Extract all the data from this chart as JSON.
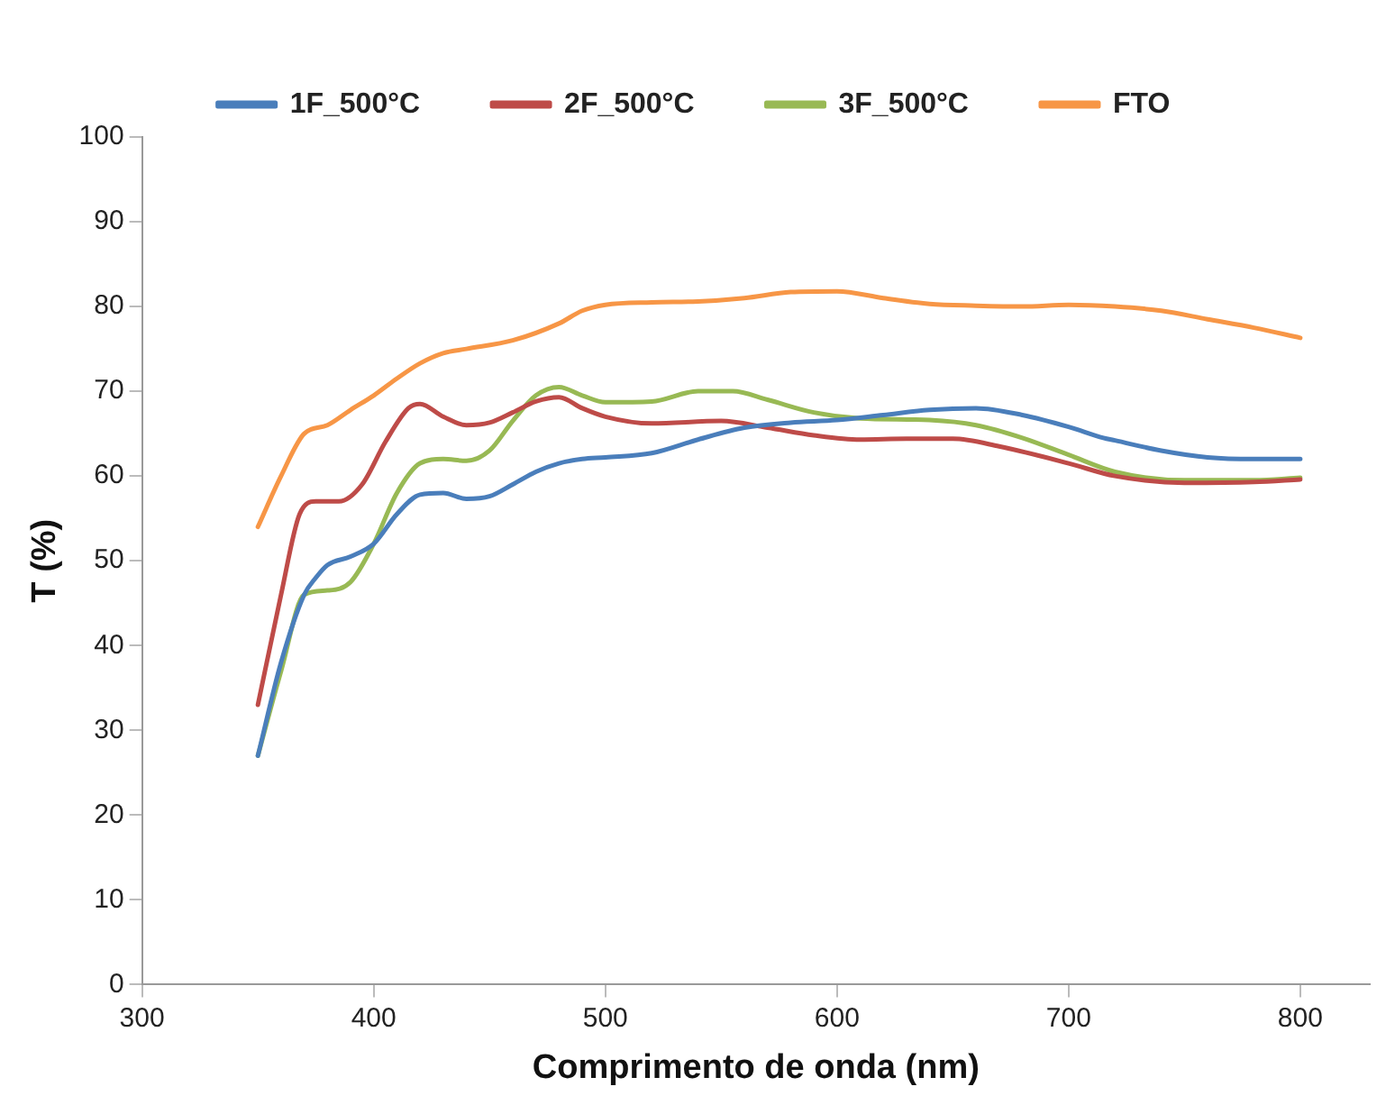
{
  "chart_data": {
    "type": "line",
    "xlabel": "Comprimento de onda (nm)",
    "ylabel": "T (%)",
    "xlim": [
      300,
      830
    ],
    "xticks": [
      300,
      400,
      500,
      600,
      700,
      800
    ],
    "ylim": [
      0,
      100
    ],
    "yticks": [
      0,
      10,
      20,
      30,
      40,
      50,
      60,
      70,
      80,
      90,
      100
    ],
    "grid": false,
    "legend": "top",
    "marker": "none",
    "line_style": "solid",
    "series": [
      {
        "name": "1F_500°C",
        "color": "#4a7ebb",
        "x": [
          350,
          360,
          370,
          375,
          380,
          390,
          400,
          410,
          420,
          430,
          440,
          450,
          460,
          470,
          480,
          490,
          500,
          520,
          540,
          560,
          580,
          600,
          620,
          640,
          660,
          680,
          700,
          715,
          720,
          740,
          760,
          780,
          800
        ],
        "values": [
          27,
          38,
          46,
          48,
          49.5,
          50.5,
          52,
          55.5,
          57.8,
          58,
          57.3,
          57.6,
          59,
          60.5,
          61.5,
          62,
          62.2,
          62.7,
          64.3,
          65.7,
          66.3,
          66.6,
          67.2,
          67.8,
          68,
          67.2,
          65.8,
          64.5,
          64.2,
          63,
          62.2,
          62,
          62
        ]
      },
      {
        "name": "2F_500°C",
        "color": "#be4b48",
        "x": [
          350,
          360,
          368,
          375,
          385,
          395,
          405,
          415,
          420,
          430,
          440,
          450,
          460,
          470,
          480,
          490,
          500,
          520,
          550,
          570,
          590,
          610,
          630,
          650,
          670,
          700,
          720,
          750,
          780,
          800
        ],
        "values": [
          33,
          46,
          55.5,
          57,
          57,
          59,
          64,
          68,
          68.5,
          67,
          66,
          66.3,
          67.5,
          68.8,
          69.3,
          68,
          67,
          66.2,
          66.5,
          65.7,
          64.8,
          64.3,
          64.4,
          64.4,
          63.5,
          61.5,
          60,
          59.2,
          59.3,
          59.6
        ]
      },
      {
        "name": "3F_500°C",
        "color": "#98b954",
        "x": [
          350,
          360,
          370,
          380,
          390,
          400,
          410,
          420,
          430,
          440,
          450,
          460,
          470,
          480,
          490,
          500,
          520,
          540,
          555,
          570,
          590,
          610,
          640,
          660,
          680,
          700,
          720,
          750,
          780,
          800
        ],
        "values": [
          27,
          37,
          46,
          46.5,
          47.5,
          52,
          58,
          61.5,
          62,
          61.8,
          63,
          66.5,
          69.5,
          70.5,
          69.5,
          68.7,
          68.8,
          70,
          70,
          69,
          67.5,
          66.8,
          66.6,
          66,
          64.5,
          62.5,
          60.5,
          59.5,
          59.5,
          59.8
        ]
      },
      {
        "name": "FTO",
        "color": "#f79646",
        "x": [
          350,
          360,
          370,
          380,
          390,
          400,
          410,
          420,
          430,
          440,
          460,
          480,
          490,
          500,
          520,
          540,
          560,
          580,
          600,
          620,
          640,
          660,
          680,
          700,
          720,
          740,
          760,
          780,
          800
        ],
        "values": [
          54,
          60,
          65,
          66,
          67.8,
          69.5,
          71.5,
          73.3,
          74.5,
          75,
          76,
          78,
          79.5,
          80.2,
          80.5,
          80.6,
          81,
          81.7,
          81.8,
          81,
          80.3,
          80.1,
          80,
          80.2,
          80,
          79.5,
          78.5,
          77.5,
          76.3
        ]
      }
    ]
  }
}
